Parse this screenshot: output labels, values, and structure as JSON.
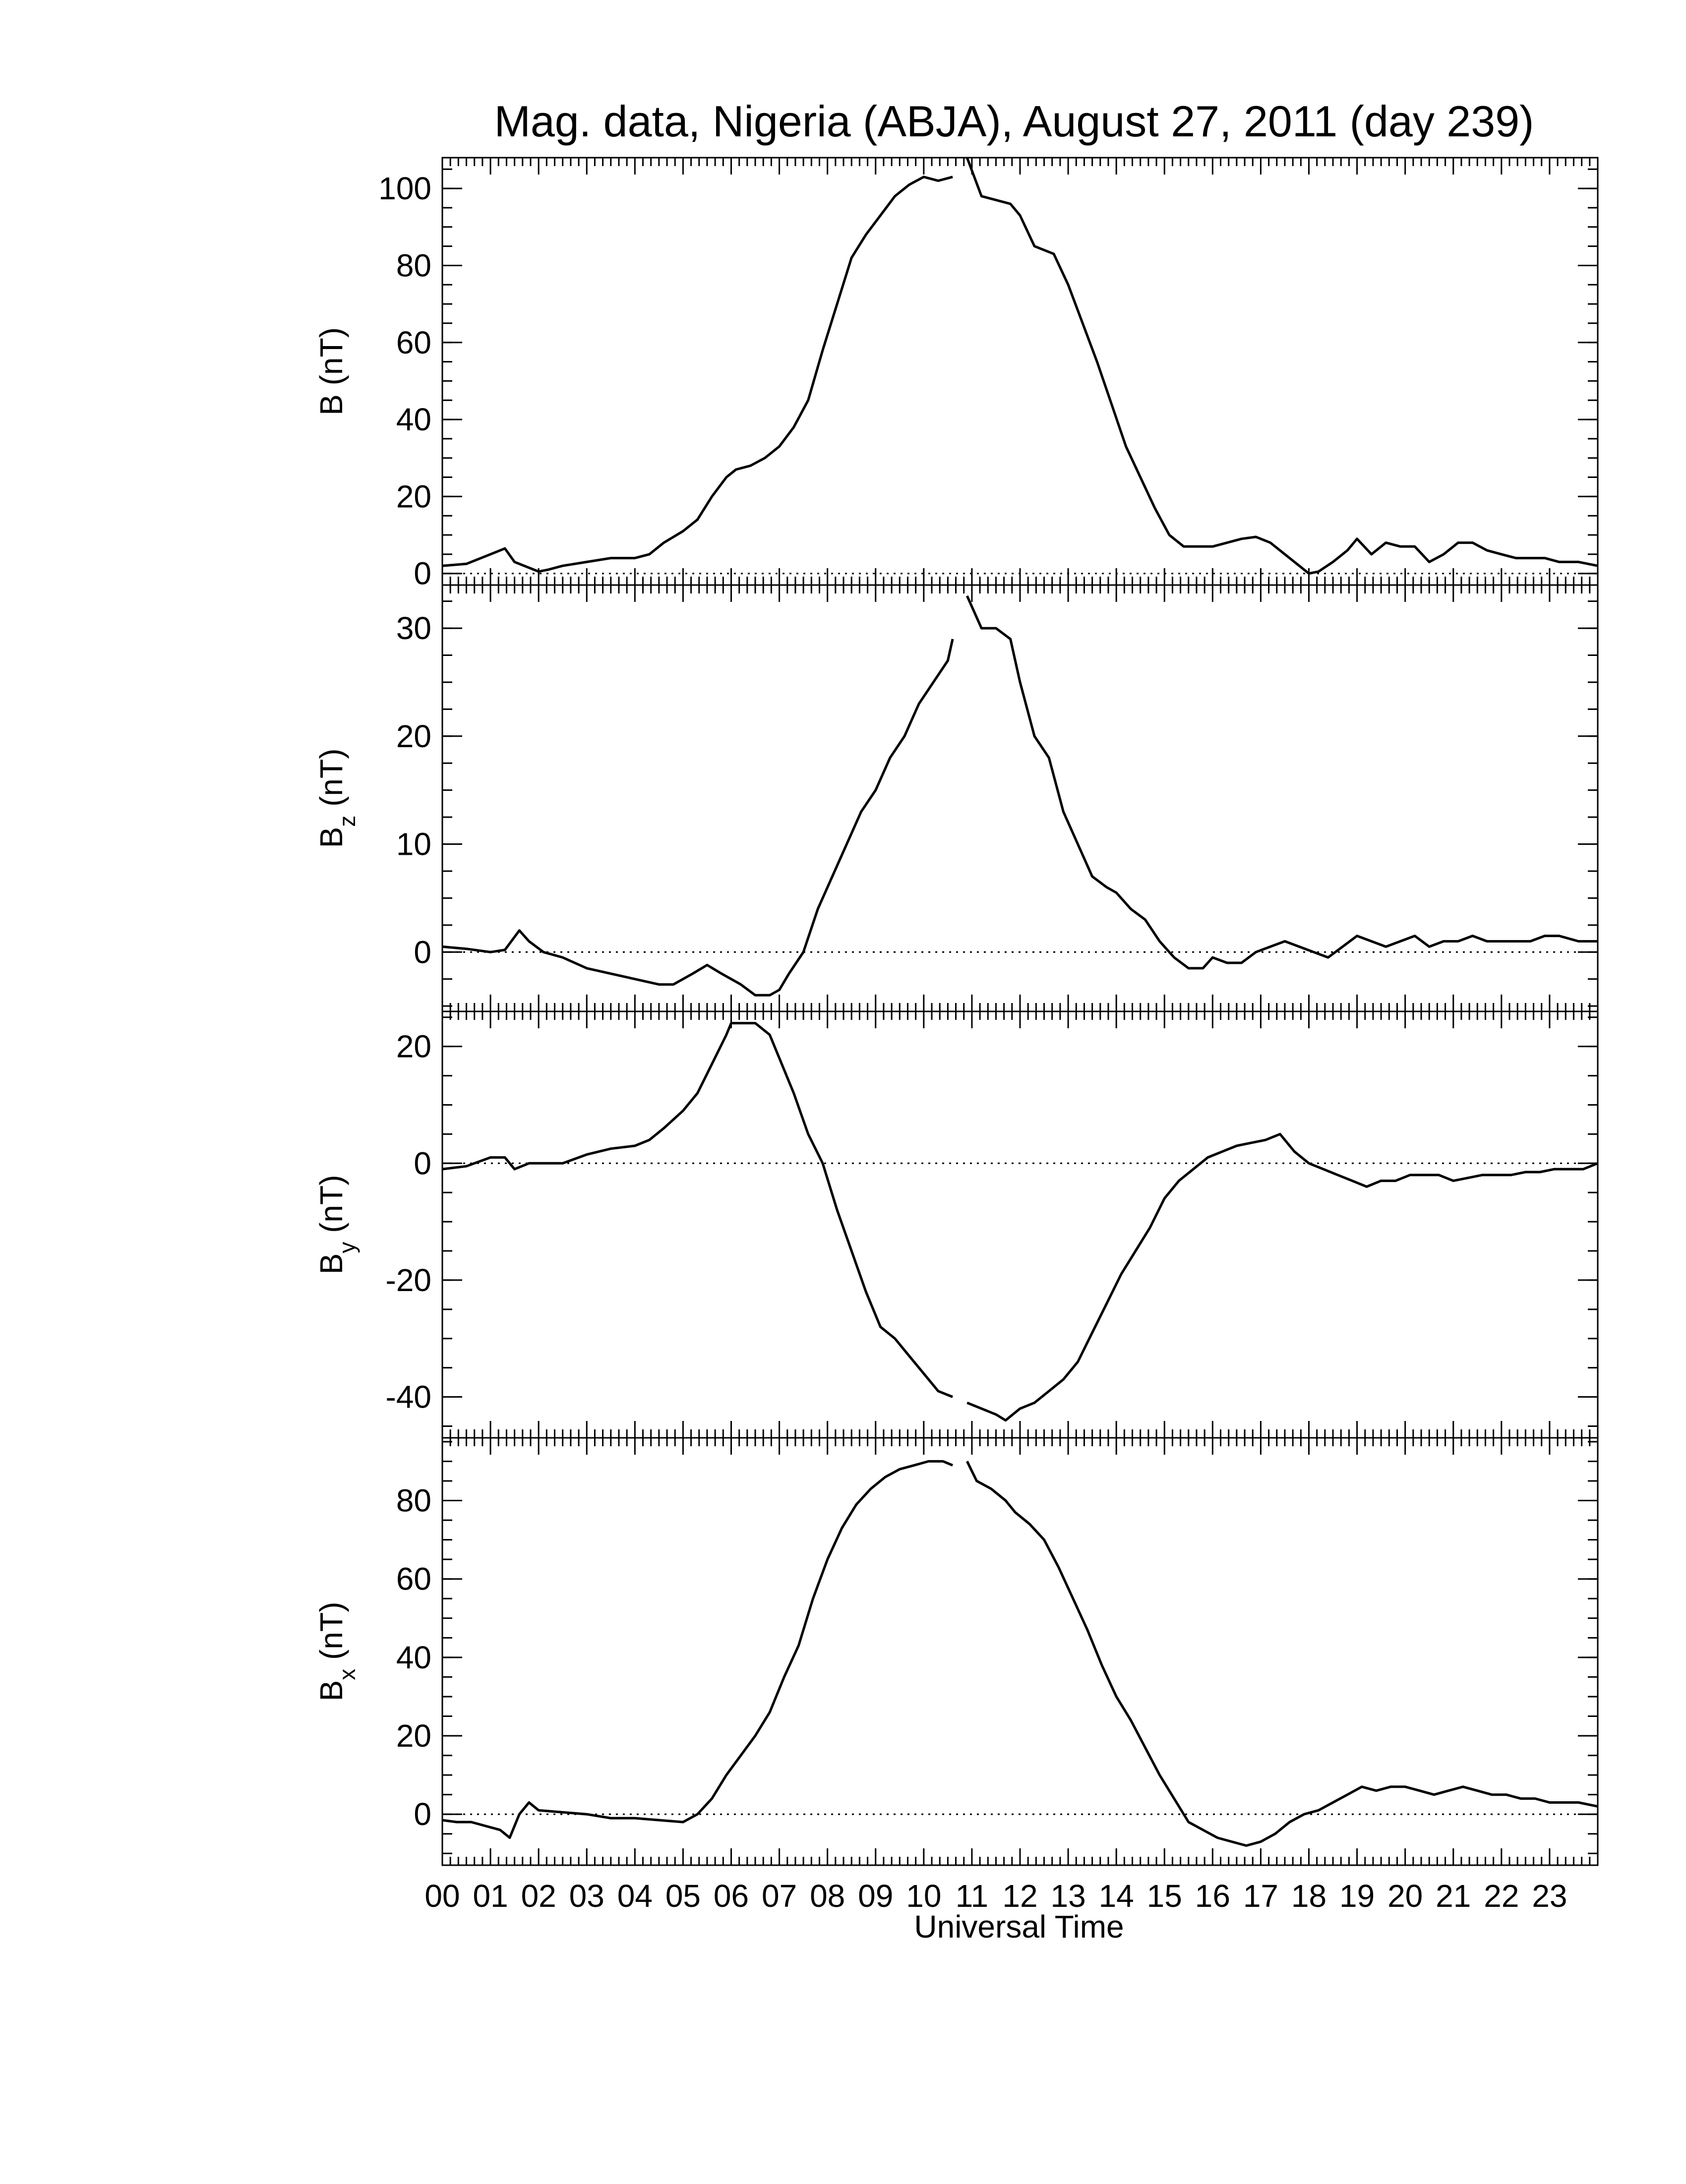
{
  "figure": {
    "title": "Mag. data, Nigeria (ABJA), August 27, 2011 (day 239)",
    "xlabel": "Universal Time",
    "x_tick_labels": [
      "00",
      "01",
      "02",
      "03",
      "04",
      "05",
      "06",
      "07",
      "08",
      "09",
      "10",
      "11",
      "12",
      "13",
      "14",
      "15",
      "16",
      "17",
      "18",
      "19",
      "20",
      "21",
      "22",
      "23"
    ]
  },
  "chart_data": [
    {
      "type": "line",
      "ylabel": "B (nT)",
      "ylabel_base": "B",
      "ylabel_sub": "",
      "ylabel_unit": " (nT)",
      "xlim": [
        0,
        24
      ],
      "ylim": [
        -3,
        108
      ],
      "yticks": [
        0,
        20,
        40,
        60,
        80,
        100
      ],
      "zero_line": true,
      "series": [
        {
          "x": [
            0,
            0.5,
            1,
            1.3,
            1.5,
            1.7,
            1.9,
            2,
            2.2,
            2.5,
            3,
            3.5,
            4,
            4.3,
            4.6,
            5,
            5.3,
            5.6,
            5.9,
            6.1,
            6.4,
            6.7,
            7,
            7.3,
            7.6,
            7.9,
            8.2,
            8.5,
            8.8,
            9.1,
            9.4,
            9.7,
            10,
            10.3,
            10.6
          ],
          "y": [
            2,
            2.5,
            5,
            6.5,
            3,
            2,
            1,
            0.5,
            1,
            2,
            3,
            4,
            4,
            5,
            8,
            11,
            14,
            20,
            25,
            27,
            28,
            30,
            33,
            38,
            45,
            58,
            70,
            82,
            88,
            93,
            98,
            101,
            103,
            102,
            103
          ]
        },
        {
          "x": [
            10.9,
            11.2,
            11.5,
            11.8,
            12,
            12.3,
            12.7,
            13,
            13.3,
            13.6,
            13.9,
            14.2,
            14.5,
            14.8,
            15.1,
            15.4,
            15.7,
            16,
            16.3,
            16.6,
            16.9,
            17.2,
            17.5,
            17.8,
            18,
            18.2,
            18.5,
            18.8,
            19,
            19.3,
            19.6,
            19.9,
            20.2,
            20.5,
            20.8,
            21.1,
            21.4,
            21.7,
            22,
            22.3,
            22.6,
            22.9,
            23.2,
            23.6,
            24
          ],
          "y": [
            108,
            98,
            97,
            96,
            93,
            85,
            83,
            75,
            65,
            55,
            44,
            33,
            25,
            17,
            10,
            7,
            7,
            7,
            8,
            9,
            9.5,
            8,
            5,
            2,
            0,
            0.5,
            3,
            6,
            9,
            5,
            8,
            7,
            7,
            3,
            5,
            8,
            8,
            6,
            5,
            4,
            4,
            4,
            3,
            3,
            2
          ]
        }
      ]
    },
    {
      "type": "line",
      "ylabel": "Bz (nT)",
      "ylabel_base": "B",
      "ylabel_sub": "z",
      "ylabel_unit": " (nT)",
      "xlim": [
        0,
        24
      ],
      "ylim": [
        -5.5,
        34
      ],
      "yticks": [
        0,
        10,
        20,
        30
      ],
      "zero_line": true,
      "series": [
        {
          "x": [
            0,
            0.5,
            1,
            1.3,
            1.6,
            1.8,
            2.1,
            2.5,
            3,
            3.5,
            4,
            4.5,
            4.8,
            5.2,
            5.5,
            5.8,
            6.2,
            6.5,
            6.8,
            7,
            7.2,
            7.5,
            7.8,
            8.1,
            8.4,
            8.7,
            9,
            9.3,
            9.6,
            9.9,
            10.2,
            10.5,
            10.6
          ],
          "y": [
            0.5,
            0.3,
            0,
            0.2,
            2,
            1,
            0,
            -0.5,
            -1.5,
            -2,
            -2.5,
            -3,
            -3,
            -2,
            -1.2,
            -2,
            -3,
            -4,
            -4,
            -3.5,
            -2,
            0,
            4,
            7,
            10,
            13,
            15,
            18,
            20,
            23,
            25,
            27,
            29
          ]
        },
        {
          "x": [
            10.9,
            11.2,
            11.5,
            11.8,
            12,
            12.3,
            12.6,
            12.9,
            13.2,
            13.5,
            13.8,
            14,
            14.3,
            14.6,
            14.9,
            15.2,
            15.5,
            15.8,
            16,
            16.3,
            16.6,
            16.9,
            17.2,
            17.5,
            17.8,
            18.1,
            18.4,
            18.7,
            19,
            19.3,
            19.6,
            19.9,
            20.2,
            20.5,
            20.8,
            21.1,
            21.4,
            21.7,
            22,
            22.3,
            22.6,
            22.9,
            23.2,
            23.6,
            24
          ],
          "y": [
            33,
            30,
            30,
            29,
            25,
            20,
            18,
            13,
            10,
            7,
            6,
            5.5,
            4,
            3,
            1,
            -0.5,
            -1.5,
            -1.5,
            -0.5,
            -1,
            -1,
            0,
            0.5,
            1,
            0.5,
            0,
            -0.5,
            0.5,
            1.5,
            1,
            0.5,
            1,
            1.5,
            0.5,
            1,
            1,
            1.5,
            1,
            1,
            1,
            1,
            1.5,
            1.5,
            1,
            1
          ]
        }
      ]
    },
    {
      "type": "line",
      "ylabel": "By (nT)",
      "ylabel_base": "B",
      "ylabel_sub": "y",
      "ylabel_unit": " (nT)",
      "xlim": [
        0,
        24
      ],
      "ylim": [
        -47,
        26
      ],
      "yticks": [
        -40,
        -20,
        0,
        20
      ],
      "zero_line": true,
      "series": [
        {
          "x": [
            0,
            0.5,
            1,
            1.3,
            1.5,
            1.8,
            2,
            2.5,
            3,
            3.5,
            4,
            4.3,
            4.6,
            5,
            5.3,
            5.6,
            5.9,
            6,
            6.2,
            6.5,
            6.8,
            7,
            7.3,
            7.6,
            7.9,
            8.2,
            8.5,
            8.8,
            9.1,
            9.4,
            9.7,
            10,
            10.3,
            10.6
          ],
          "y": [
            -1,
            -0.5,
            1,
            1,
            -1,
            0,
            0,
            0,
            1.5,
            2.5,
            3,
            4,
            6,
            9,
            12,
            17,
            22,
            24,
            24,
            24,
            22,
            18,
            12,
            5,
            0,
            -8,
            -15,
            -22,
            -28,
            -30,
            -33,
            -36,
            -39,
            -40
          ]
        },
        {
          "x": [
            10.9,
            11.2,
            11.5,
            11.7,
            12,
            12.3,
            12.6,
            12.9,
            13.2,
            13.5,
            13.8,
            14.1,
            14.4,
            14.7,
            15,
            15.3,
            15.6,
            15.9,
            16.2,
            16.5,
            16.8,
            17.1,
            17.4,
            17.7,
            18,
            18.3,
            18.6,
            18.9,
            19.2,
            19.5,
            19.8,
            20.1,
            20.4,
            20.7,
            21,
            21.3,
            21.6,
            21.9,
            22.2,
            22.5,
            22.8,
            23.1,
            23.4,
            23.7,
            24
          ],
          "y": [
            -41,
            -42,
            -43,
            -44,
            -42,
            -41,
            -39,
            -37,
            -34,
            -29,
            -24,
            -19,
            -15,
            -11,
            -6,
            -3,
            -1,
            1,
            2,
            3,
            3.5,
            4,
            5,
            2,
            0,
            -1,
            -2,
            -3,
            -4,
            -3,
            -3,
            -2,
            -2,
            -2,
            -3,
            -2.5,
            -2,
            -2,
            -2,
            -1.5,
            -1.5,
            -1,
            -1,
            -1,
            0
          ]
        }
      ]
    },
    {
      "type": "line",
      "ylabel": "Bx (nT)",
      "ylabel_base": "B",
      "ylabel_sub": "x",
      "ylabel_unit": " (nT)",
      "xlim": [
        0,
        24
      ],
      "ylim": [
        -13,
        96
      ],
      "yticks": [
        0,
        20,
        40,
        60,
        80
      ],
      "zero_line": true,
      "series": [
        {
          "x": [
            0,
            0.3,
            0.6,
            0.9,
            1.2,
            1.4,
            1.6,
            1.8,
            2,
            2.5,
            3,
            3.5,
            4,
            4.5,
            5,
            5.3,
            5.6,
            5.9,
            6.2,
            6.5,
            6.8,
            7.1,
            7.4,
            7.7,
            8,
            8.3,
            8.6,
            8.9,
            9.2,
            9.5,
            9.8,
            10.1,
            10.4,
            10.6
          ],
          "y": [
            -1.5,
            -2,
            -2,
            -3,
            -4,
            -6,
            0,
            3,
            1,
            0.5,
            0,
            -1,
            -1,
            -1.5,
            -2,
            0,
            4,
            10,
            15,
            20,
            26,
            35,
            43,
            55,
            65,
            73,
            79,
            83,
            86,
            88,
            89,
            90,
            90,
            89
          ]
        },
        {
          "x": [
            10.9,
            11.1,
            11.4,
            11.7,
            11.9,
            12.2,
            12.5,
            12.8,
            13.1,
            13.4,
            13.7,
            14,
            14.3,
            14.6,
            14.9,
            15.2,
            15.5,
            15.8,
            16.1,
            16.4,
            16.7,
            17,
            17.3,
            17.6,
            17.9,
            18.2,
            18.5,
            18.8,
            19.1,
            19.4,
            19.7,
            20,
            20.3,
            20.6,
            20.9,
            21.2,
            21.5,
            21.8,
            22.1,
            22.4,
            22.7,
            23,
            23.3,
            23.6,
            24
          ],
          "y": [
            90,
            85,
            83,
            80,
            77,
            74,
            70,
            63,
            55,
            47,
            38,
            30,
            24,
            17,
            10,
            4,
            -2,
            -4,
            -6,
            -7,
            -8,
            -7,
            -5,
            -2,
            0,
            1,
            3,
            5,
            7,
            6,
            7,
            7,
            6,
            5,
            6,
            7,
            6,
            5,
            5,
            4,
            4,
            3,
            3,
            3,
            2
          ]
        }
      ]
    }
  ]
}
